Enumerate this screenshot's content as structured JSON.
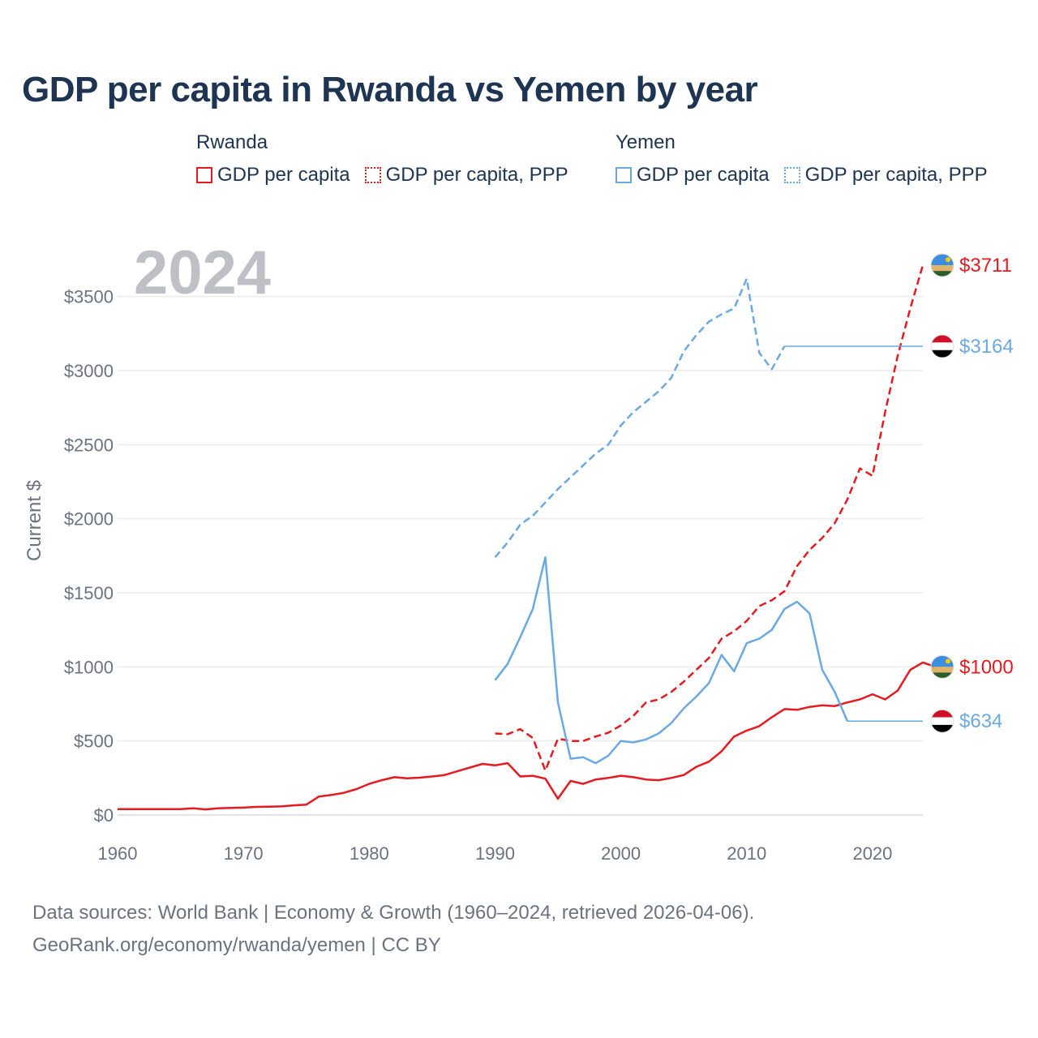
{
  "chart_data": {
    "type": "line",
    "title": "GDP per capita in Rwanda vs Yemen by year",
    "ylabel": "Current $",
    "xlabel": "",
    "year_watermark": "2024",
    "xlim": [
      1960,
      2024
    ],
    "ylim": [
      0,
      3750
    ],
    "x_ticks": [
      1960,
      1970,
      1980,
      1990,
      2000,
      2010,
      2020
    ],
    "y_ticks": [
      {
        "value": 0,
        "label": "$0"
      },
      {
        "value": 500,
        "label": "$500"
      },
      {
        "value": 1000,
        "label": "$1000"
      },
      {
        "value": 1500,
        "label": "$1500"
      },
      {
        "value": 2000,
        "label": "$2000"
      },
      {
        "value": 2500,
        "label": "$2500"
      },
      {
        "value": 3000,
        "label": "$3000"
      },
      {
        "value": 3500,
        "label": "$3500"
      }
    ],
    "legend": {
      "groups": [
        {
          "country": "Rwanda",
          "items": [
            {
              "label": "GDP per capita",
              "style": "solid",
              "color": "#e8191f"
            },
            {
              "label": "GDP per capita, PPP",
              "style": "dotted",
              "color": "#e8191f"
            }
          ]
        },
        {
          "country": "Yemen",
          "items": [
            {
              "label": "GDP per capita",
              "style": "solid",
              "color": "#6aa9e4"
            },
            {
              "label": "GDP per capita, PPP",
              "style": "dotted",
              "color": "#6aa9e4"
            }
          ]
        }
      ]
    },
    "series": [
      {
        "name": "Rwanda GDP per capita",
        "country": "rwanda",
        "color": "#e8191f",
        "dashed": false,
        "start_year": 1960,
        "values": [
          40,
          40,
          40,
          40,
          40,
          40,
          45,
          38,
          45,
          48,
          50,
          55,
          56,
          58,
          65,
          70,
          125,
          135,
          150,
          175,
          210,
          235,
          255,
          248,
          252,
          260,
          270,
          295,
          320,
          345,
          335,
          350,
          260,
          265,
          245,
          110,
          230,
          210,
          240,
          250,
          265,
          255,
          240,
          235,
          250,
          270,
          325,
          360,
          430,
          530,
          570,
          600,
          660,
          715,
          710,
          730,
          740,
          735,
          760,
          780,
          815,
          780,
          840,
          980,
          1030,
          1000
        ]
      },
      {
        "name": "Rwanda GDP per capita, PPP",
        "country": "rwanda",
        "color": "#e8191f",
        "dashed": true,
        "start_year": 1990,
        "values": [
          550,
          545,
          580,
          520,
          300,
          515,
          500,
          500,
          530,
          555,
          605,
          670,
          760,
          780,
          830,
          900,
          980,
          1060,
          1190,
          1240,
          1310,
          1410,
          1450,
          1510,
          1680,
          1790,
          1870,
          1970,
          2130,
          2340,
          2290,
          2720,
          3100,
          3420,
          3711
        ]
      },
      {
        "name": "Yemen GDP per capita",
        "country": "yemen",
        "color": "#6aa9e4",
        "dashed": false,
        "start_year": 1990,
        "values": [
          910,
          1020,
          1200,
          1390,
          1740,
          760,
          380,
          390,
          350,
          400,
          500,
          490,
          510,
          550,
          620,
          720,
          800,
          890,
          1080,
          970,
          1160,
          1190,
          1250,
          1390,
          1440,
          1360,
          980,
          830,
          634
        ],
        "hold_to_year": 2024
      },
      {
        "name": "Yemen GDP per capita, PPP",
        "country": "yemen",
        "color": "#6aa9e4",
        "dashed": true,
        "start_year": 1990,
        "values": [
          1740,
          1840,
          1960,
          2020,
          2110,
          2200,
          2280,
          2360,
          2440,
          2500,
          2630,
          2720,
          2790,
          2860,
          2950,
          3130,
          3240,
          3330,
          3380,
          3420,
          3620,
          3120,
          3010,
          3164
        ],
        "hold_to_year": 2024
      }
    ],
    "end_labels": [
      {
        "country": "rwanda",
        "value": 3711,
        "text": "$3711",
        "color": "#e8191f"
      },
      {
        "country": "yemen",
        "value": 3164,
        "text": "$3164",
        "color": "#6aa9e4"
      },
      {
        "country": "rwanda",
        "value": 1000,
        "text": "$1000",
        "color": "#e8191f"
      },
      {
        "country": "yemen",
        "value": 634,
        "text": "$634",
        "color": "#6aa9e4"
      }
    ]
  },
  "footer": {
    "line1": "Data sources: World Bank | Economy & Growth (1960–2024, retrieved 2026-04-06).",
    "line2": "GeoRank.org/economy/rwanda/yemen | CC BY"
  }
}
